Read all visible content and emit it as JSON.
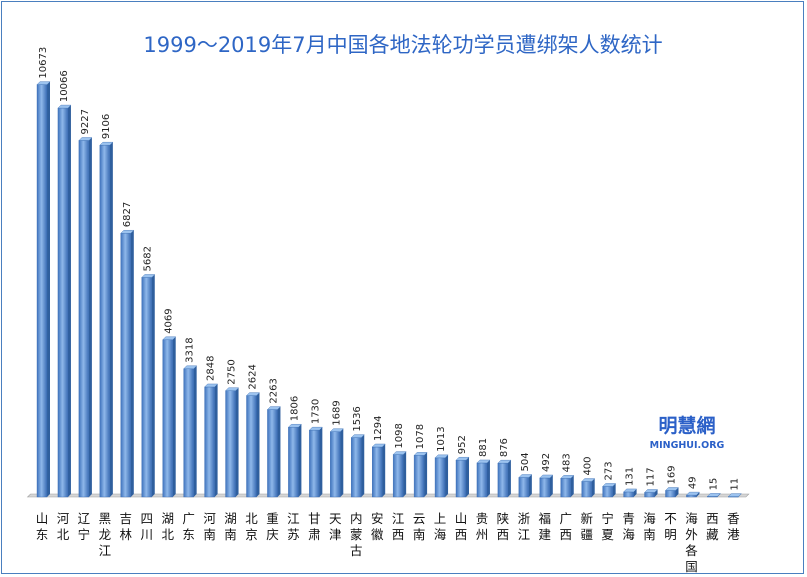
{
  "chart_data": {
    "type": "bar",
    "title": "1999～2019年7月中国各地法轮功学员遭绑架人数统计",
    "categories": [
      "山东",
      "河北",
      "辽宁",
      "黑龙江",
      "吉林",
      "四川",
      "湖北",
      "广东",
      "河南",
      "湖南",
      "北京",
      "重庆",
      "江苏",
      "甘肃",
      "天津",
      "内蒙古",
      "安徽",
      "江西",
      "云南",
      "上海",
      "山西",
      "贵州",
      "陕西",
      "浙江",
      "福建",
      "广西",
      "新疆",
      "宁夏",
      "青海",
      "海南",
      "不明",
      "海外各国",
      "西藏",
      "香港"
    ],
    "values": [
      10673,
      10066,
      9227,
      9106,
      6827,
      5682,
      4069,
      3318,
      2848,
      2750,
      2624,
      2263,
      1806,
      1730,
      1689,
      1536,
      1294,
      1098,
      1078,
      1013,
      952,
      881,
      876,
      504,
      492,
      483,
      400,
      273,
      131,
      117,
      169,
      49,
      15,
      11
    ],
    "ylim": [
      0,
      11000
    ],
    "grid": false,
    "bar_color": "#5b8fd0",
    "bar_edge_color": "#3a6db3"
  },
  "watermark": {
    "name": "明慧網",
    "url": "MINGHUI.ORG"
  }
}
